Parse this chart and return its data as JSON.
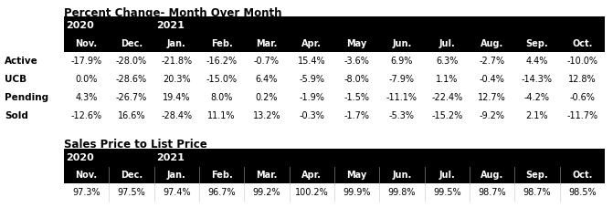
{
  "title1": "Percent Change- Month Over Month",
  "title2": "Sales Price to List Price",
  "months": [
    "Nov.",
    "Dec.",
    "Jan.",
    "Feb.",
    "Mar.",
    "Apr.",
    "May",
    "Jun.",
    "Jul.",
    "Aug.",
    "Sep.",
    "Oct."
  ],
  "row_labels": [
    "Active",
    "UCB",
    "Pending",
    "Sold"
  ],
  "table1_data": [
    [
      "-17.9%",
      "-28.0%",
      "-21.8%",
      "-16.2%",
      "-0.7%",
      "15.4%",
      "-3.6%",
      "6.9%",
      "6.3%",
      "-2.7%",
      "4.4%",
      "-10.0%"
    ],
    [
      "0.0%",
      "-28.6%",
      "20.3%",
      "-15.0%",
      "6.4%",
      "-5.9%",
      "-8.0%",
      "-7.9%",
      "1.1%",
      "-0.4%",
      "-14.3%",
      "12.8%"
    ],
    [
      "4.3%",
      "-26.7%",
      "19.4%",
      "8.0%",
      "0.2%",
      "-1.9%",
      "-1.5%",
      "-11.1%",
      "-22.4%",
      "12.7%",
      "-4.2%",
      "-0.6%"
    ],
    [
      "-12.6%",
      "16.6%",
      "-28.4%",
      "11.1%",
      "13.2%",
      "-0.3%",
      "-1.7%",
      "-5.3%",
      "-15.2%",
      "-9.2%",
      "2.1%",
      "-11.7%"
    ]
  ],
  "table2_data": [
    "97.3%",
    "97.5%",
    "97.4%",
    "96.7%",
    "99.2%",
    "100.2%",
    "99.9%",
    "99.8%",
    "99.5%",
    "98.7%",
    "98.7%",
    "98.5%"
  ],
  "header_bg": "#000000",
  "header_fg": "#ffffff",
  "bg_color": "#ffffff",
  "cell_fg": "#000000",
  "font_size": 7.0,
  "header_font_size": 8.0,
  "title_font_size": 8.5,
  "label_font_size": 7.5
}
